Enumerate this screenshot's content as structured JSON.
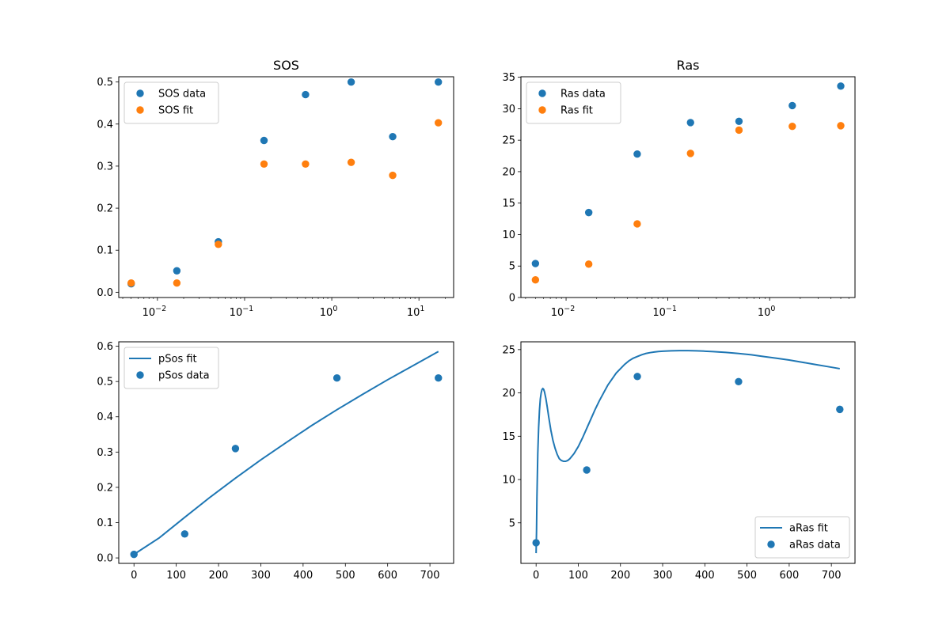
{
  "chart_data": [
    {
      "type": "scatter",
      "title": "SOS",
      "xlabel": "",
      "ylabel": "",
      "xscale": "log",
      "xlim": [
        0.0036,
        25
      ],
      "ylim": [
        -0.0125,
        0.5125
      ],
      "xticks": [
        {
          "value": 0.01,
          "base": "10",
          "exp": "−2"
        },
        {
          "value": 0.1,
          "base": "10",
          "exp": "−1"
        },
        {
          "value": 1,
          "base": "10",
          "exp": "0"
        },
        {
          "value": 10,
          "base": "10",
          "exp": "1"
        }
      ],
      "yticks": [
        {
          "value": 0.0,
          "label": "0.0"
        },
        {
          "value": 0.1,
          "label": "0.1"
        },
        {
          "value": 0.2,
          "label": "0.2"
        },
        {
          "value": 0.3,
          "label": "0.3"
        },
        {
          "value": 0.4,
          "label": "0.4"
        },
        {
          "value": 0.5,
          "label": "0.5"
        }
      ],
      "legend": "upper-left",
      "series": [
        {
          "name": "SOS data",
          "kind": "scatter",
          "color": "#1f77b4",
          "x": [
            0.005,
            0.0167,
            0.05,
            0.167,
            0.5,
            1.67,
            5,
            16.7
          ],
          "y": [
            0.02,
            0.051,
            0.12,
            0.361,
            0.47,
            0.5,
            0.37,
            0.5
          ]
        },
        {
          "name": "SOS fit",
          "kind": "scatter",
          "color": "#ff7f0e",
          "x": [
            0.005,
            0.0167,
            0.05,
            0.167,
            0.5,
            1.67,
            5,
            16.7
          ],
          "y": [
            0.022,
            0.022,
            0.114,
            0.305,
            0.305,
            0.309,
            0.278,
            0.403
          ]
        }
      ]
    },
    {
      "type": "scatter",
      "title": "Ras",
      "xlabel": "",
      "ylabel": "",
      "xscale": "log",
      "xlim": [
        0.0036,
        6.9
      ],
      "ylim": [
        0,
        35.08
      ],
      "xticks": [
        {
          "value": 0.01,
          "base": "10",
          "exp": "−2"
        },
        {
          "value": 0.1,
          "base": "10",
          "exp": "−1"
        },
        {
          "value": 1,
          "base": "10",
          "exp": "0"
        }
      ],
      "yticks": [
        {
          "value": 0,
          "label": "0"
        },
        {
          "value": 5,
          "label": "5"
        },
        {
          "value": 10,
          "label": "10"
        },
        {
          "value": 15,
          "label": "15"
        },
        {
          "value": 20,
          "label": "20"
        },
        {
          "value": 25,
          "label": "25"
        },
        {
          "value": 30,
          "label": "30"
        },
        {
          "value": 35,
          "label": "35"
        }
      ],
      "legend": "upper-left",
      "series": [
        {
          "name": "Ras data",
          "kind": "scatter",
          "color": "#1f77b4",
          "x": [
            0.005,
            0.0167,
            0.05,
            0.167,
            0.5,
            1.67,
            5
          ],
          "y": [
            5.4,
            13.5,
            22.8,
            27.8,
            28.0,
            30.5,
            33.6
          ]
        },
        {
          "name": "Ras fit",
          "kind": "scatter",
          "color": "#ff7f0e",
          "x": [
            0.005,
            0.0167,
            0.05,
            0.167,
            0.5,
            1.67,
            5
          ],
          "y": [
            2.8,
            5.3,
            11.7,
            22.9,
            26.6,
            27.2,
            27.3
          ]
        }
      ]
    },
    {
      "type": "line",
      "title": "",
      "xlabel": "",
      "ylabel": "",
      "xscale": "linear",
      "xlim": [
        -36,
        756
      ],
      "ylim": [
        -0.0155,
        0.6125
      ],
      "xticks": [
        {
          "value": 0,
          "label": "0"
        },
        {
          "value": 100,
          "label": "100"
        },
        {
          "value": 200,
          "label": "200"
        },
        {
          "value": 300,
          "label": "300"
        },
        {
          "value": 400,
          "label": "400"
        },
        {
          "value": 500,
          "label": "500"
        },
        {
          "value": 600,
          "label": "600"
        },
        {
          "value": 700,
          "label": "700"
        }
      ],
      "yticks": [
        {
          "value": 0.0,
          "label": "0.0"
        },
        {
          "value": 0.1,
          "label": "0.1"
        },
        {
          "value": 0.2,
          "label": "0.2"
        },
        {
          "value": 0.3,
          "label": "0.3"
        },
        {
          "value": 0.4,
          "label": "0.4"
        },
        {
          "value": 0.5,
          "label": "0.5"
        },
        {
          "value": 0.6,
          "label": "0.6"
        }
      ],
      "legend": "upper-left",
      "series": [
        {
          "name": "pSos fit",
          "kind": "line",
          "color": "#1f77b4",
          "x": [
            0,
            60,
            120,
            180,
            240,
            300,
            360,
            420,
            480,
            540,
            600,
            660,
            720
          ],
          "y": [
            0.01,
            0.057,
            0.115,
            0.172,
            0.226,
            0.278,
            0.327,
            0.375,
            0.42,
            0.463,
            0.505,
            0.545,
            0.585
          ]
        },
        {
          "name": "pSos data",
          "kind": "scatter",
          "color": "#1f77b4",
          "x": [
            0,
            120,
            240,
            480,
            720
          ],
          "y": [
            0.01,
            0.068,
            0.31,
            0.51,
            0.51
          ]
        }
      ]
    },
    {
      "type": "line",
      "title": "",
      "xlabel": "",
      "ylabel": "",
      "xscale": "linear",
      "xlim": [
        -36,
        756
      ],
      "ylim": [
        0.32,
        25.9
      ],
      "xticks": [
        {
          "value": 0,
          "label": "0"
        },
        {
          "value": 100,
          "label": "100"
        },
        {
          "value": 200,
          "label": "200"
        },
        {
          "value": 300,
          "label": "300"
        },
        {
          "value": 400,
          "label": "400"
        },
        {
          "value": 500,
          "label": "500"
        },
        {
          "value": 600,
          "label": "600"
        },
        {
          "value": 700,
          "label": "700"
        }
      ],
      "yticks": [
        {
          "value": 5,
          "label": "5"
        },
        {
          "value": 10,
          "label": "10"
        },
        {
          "value": 15,
          "label": "15"
        },
        {
          "value": 20,
          "label": "20"
        },
        {
          "value": 25,
          "label": "25"
        }
      ],
      "legend": "lower-right",
      "series": [
        {
          "name": "aRas fit",
          "kind": "line",
          "color": "#1f77b4",
          "x": [
            0,
            1,
            2,
            4,
            6,
            8,
            10,
            12,
            14,
            16,
            18,
            20,
            23,
            26,
            30,
            35,
            40,
            45,
            50,
            55,
            60,
            65,
            70,
            75,
            80,
            85,
            90,
            100,
            110,
            120,
            130,
            140,
            150,
            160,
            170,
            180,
            190,
            200,
            210,
            220,
            230,
            240,
            250,
            260,
            270,
            280,
            290,
            300,
            320,
            340,
            360,
            380,
            400,
            420,
            450,
            480,
            510,
            540,
            570,
            600,
            630,
            660,
            690,
            720
          ],
          "y": [
            1.5,
            4.0,
            8.0,
            13.0,
            16.0,
            18.0,
            19.3,
            20.0,
            20.4,
            20.5,
            20.4,
            20.1,
            19.4,
            18.5,
            17.2,
            15.7,
            14.5,
            13.6,
            12.9,
            12.4,
            12.2,
            12.1,
            12.1,
            12.2,
            12.4,
            12.7,
            13.0,
            13.8,
            14.8,
            15.9,
            17.0,
            18.1,
            19.1,
            20.0,
            20.9,
            21.6,
            22.3,
            22.8,
            23.3,
            23.7,
            24.0,
            24.2,
            24.4,
            24.55,
            24.65,
            24.72,
            24.78,
            24.82,
            24.86,
            24.88,
            24.88,
            24.86,
            24.82,
            24.77,
            24.68,
            24.55,
            24.4,
            24.2,
            24.0,
            23.8,
            23.55,
            23.3,
            23.05,
            22.8
          ]
        },
        {
          "name": "aRas data",
          "kind": "scatter",
          "color": "#1f77b4",
          "x": [
            0,
            120,
            240,
            480,
            720
          ],
          "y": [
            2.7,
            11.1,
            21.9,
            21.3,
            18.1
          ]
        }
      ]
    }
  ]
}
